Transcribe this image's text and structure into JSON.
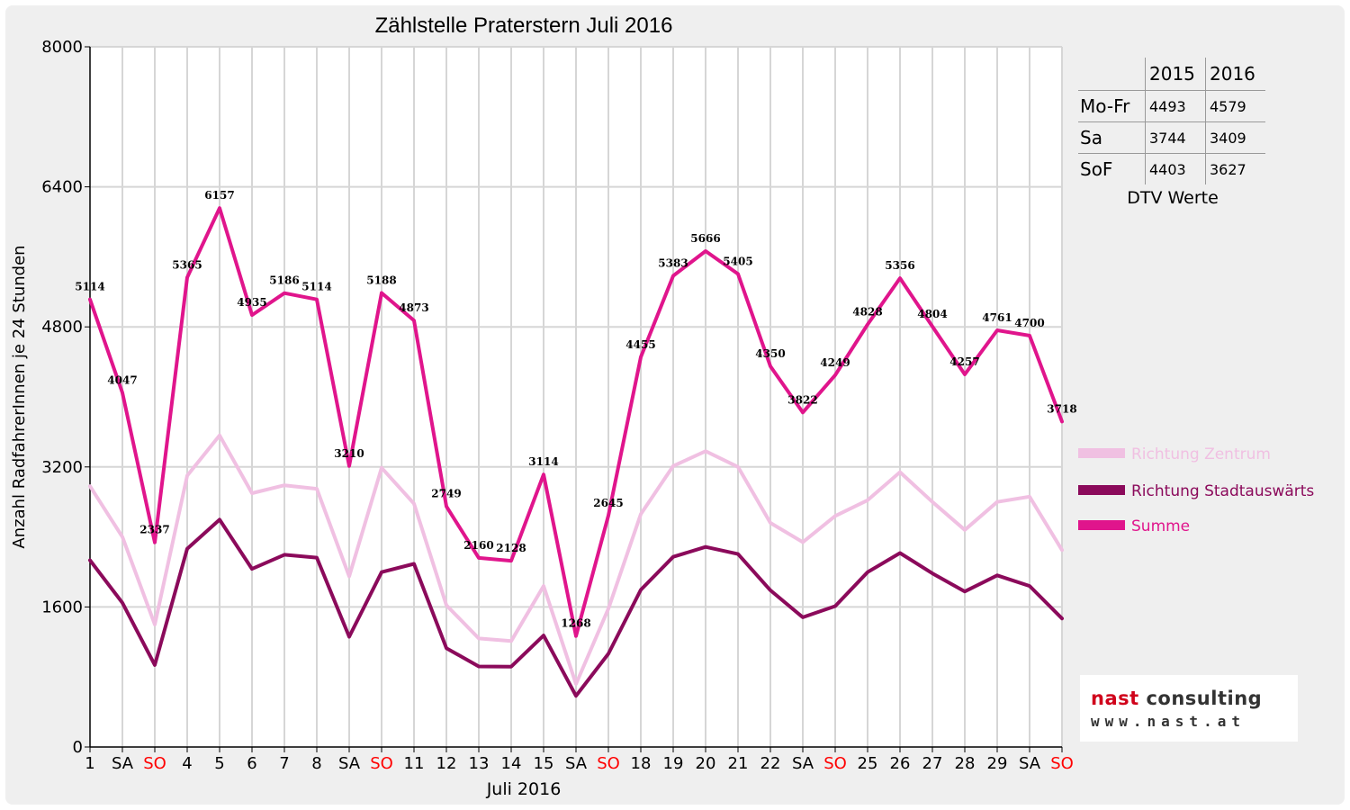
{
  "chart_data": {
    "type": "line",
    "title": "Zählstelle Praterstern Juli 2016",
    "xlabel": "Juli 2016",
    "ylabel": "Anzahl RadfahrerInnen je 24 Stunden",
    "ylim": [
      0,
      8000
    ],
    "yticks": [
      0,
      1600,
      3200,
      4800,
      6400,
      8000
    ],
    "categories": [
      "1",
      "SA",
      "SO",
      "4",
      "5",
      "6",
      "7",
      "8",
      "SA",
      "SO",
      "11",
      "12",
      "13",
      "14",
      "15",
      "SA",
      "SO",
      "18",
      "19",
      "20",
      "21",
      "22",
      "SA",
      "SO",
      "25",
      "26",
      "27",
      "28",
      "29",
      "SA",
      "SO"
    ],
    "weekend_days": [
      "SA",
      "SO"
    ],
    "grid": true,
    "legend_position": "right",
    "series": [
      {
        "name": "Richtung Zentrum",
        "color": "#f0c0e2",
        "values": [
          2980,
          2400,
          1400,
          3100,
          3560,
          2900,
          2990,
          2950,
          1950,
          3190,
          2780,
          1620,
          1240,
          1210,
          1840,
          720,
          1580,
          2660,
          3210,
          3380,
          3200,
          2560,
          2340,
          2640,
          2820,
          3140,
          2800,
          2480,
          2800,
          2860,
          2250
        ]
      },
      {
        "name": "Richtung Stadtauswärts",
        "color": "#8b0a5b",
        "values": [
          2134,
          1647,
          937,
          2265,
          2597,
          2035,
          2196,
          2164,
          1260,
          1998,
          2093,
          1129,
          920,
          918,
          1274,
          584,
          1065,
          1795,
          2173,
          2286,
          2205,
          1790,
          1482,
          1609,
          1998,
          2216,
          1984,
          1777,
          1961,
          1840,
          1468
        ]
      },
      {
        "name": "Summe",
        "color": "#e0158c",
        "values": [
          5114,
          4047,
          2337,
          5365,
          6157,
          4935,
          5186,
          5114,
          3210,
          5188,
          4873,
          2749,
          2160,
          2128,
          3114,
          1268,
          2645,
          4455,
          5383,
          5666,
          5405,
          4350,
          3822,
          4249,
          4828,
          5356,
          4804,
          4257,
          4761,
          4700,
          3718
        ]
      }
    ],
    "data_labels": [
      "5114",
      "4047",
      "2337",
      "5365",
      "6157",
      "4935",
      "5186",
      "5114",
      "3210",
      "5188",
      "4873",
      "2749",
      "2160",
      "2128",
      "3114",
      "1268",
      "2645",
      "4455",
      "5383",
      "5666",
      "5405",
      "4350",
      "3822",
      "4249",
      "4828",
      "5356",
      "4804",
      "4257",
      "4761",
      "4700",
      "3718"
    ]
  },
  "dtv": {
    "title": "DTV Werte",
    "years": [
      "2015",
      "2016"
    ],
    "rows": [
      {
        "label": "Mo-Fr",
        "v2015": "4493",
        "v2016": "4579"
      },
      {
        "label": "Sa",
        "v2015": "3744",
        "v2016": "3409"
      },
      {
        "label": "SoF",
        "v2015": "4403",
        "v2016": "3627"
      }
    ]
  },
  "logo": {
    "name_part1": "nast",
    "name_part2": "consulting",
    "url": "www.nast.at"
  },
  "colors": {
    "weekend_label": "#ff0000",
    "background": "#efefef",
    "grid": "#d3d3d3"
  }
}
